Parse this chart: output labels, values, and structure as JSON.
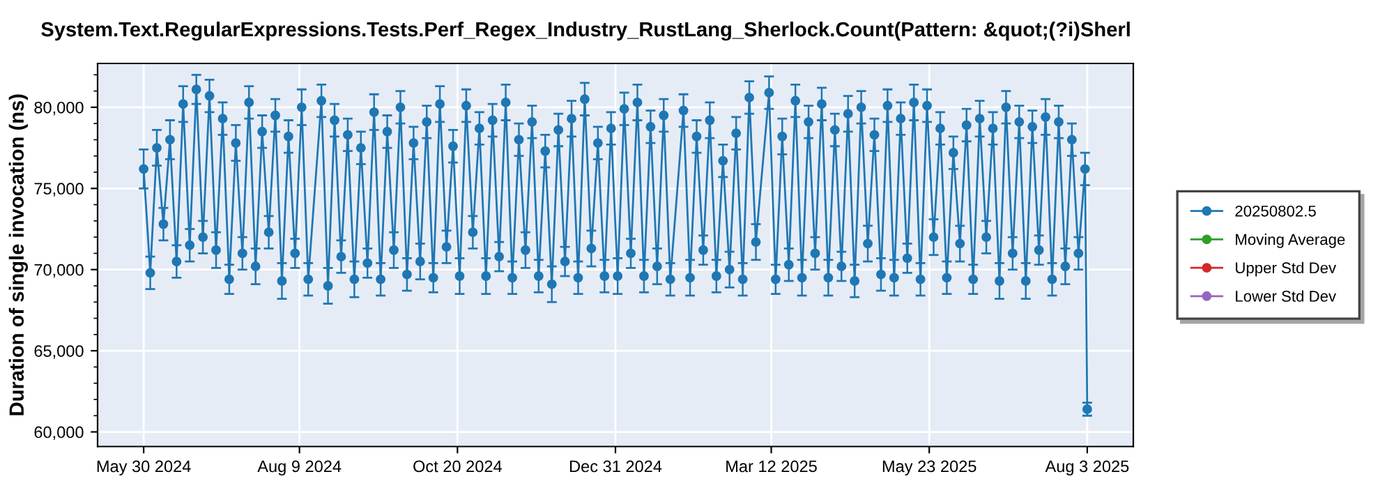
{
  "chart_data": {
    "type": "line",
    "title": "System.Text.RegularExpressions.Tests.Perf_Regex_Industry_RustLang_Sherlock.Count(Pattern: &quot;(?i)Sherl",
    "ylabel": "Duration of single invocation (ns)",
    "x": [
      "2024-05-30",
      "2024-06-02",
      "2024-06-05",
      "2024-06-08",
      "2024-06-11",
      "2024-06-14",
      "2024-06-17",
      "2024-06-20",
      "2024-06-23",
      "2024-06-26",
      "2024-06-29",
      "2024-07-02",
      "2024-07-05",
      "2024-07-08",
      "2024-07-11",
      "2024-07-14",
      "2024-07-17",
      "2024-07-20",
      "2024-07-23",
      "2024-07-26",
      "2024-07-29",
      "2024-08-01",
      "2024-08-04",
      "2024-08-07",
      "2024-08-10",
      "2024-08-13",
      "2024-08-19",
      "2024-08-22",
      "2024-08-25",
      "2024-08-28",
      "2024-08-31",
      "2024-09-03",
      "2024-09-06",
      "2024-09-09",
      "2024-09-12",
      "2024-09-15",
      "2024-09-18",
      "2024-09-21",
      "2024-09-24",
      "2024-09-27",
      "2024-09-30",
      "2024-10-03",
      "2024-10-06",
      "2024-10-09",
      "2024-10-12",
      "2024-10-15",
      "2024-10-18",
      "2024-10-21",
      "2024-10-24",
      "2024-10-27",
      "2024-10-30",
      "2024-11-02",
      "2024-11-05",
      "2024-11-08",
      "2024-11-11",
      "2024-11-14",
      "2024-11-17",
      "2024-11-20",
      "2024-11-23",
      "2024-11-26",
      "2024-11-29",
      "2024-12-02",
      "2024-12-05",
      "2024-12-08",
      "2024-12-11",
      "2024-12-14",
      "2024-12-17",
      "2024-12-20",
      "2024-12-23",
      "2024-12-26",
      "2024-12-29",
      "2025-01-01",
      "2025-01-04",
      "2025-01-07",
      "2025-01-10",
      "2025-01-13",
      "2025-01-16",
      "2025-01-19",
      "2025-01-22",
      "2025-01-25",
      "2025-01-31",
      "2025-02-03",
      "2025-02-06",
      "2025-02-09",
      "2025-02-12",
      "2025-02-15",
      "2025-02-18",
      "2025-02-21",
      "2025-02-24",
      "2025-02-27",
      "2025-03-02",
      "2025-03-05",
      "2025-03-11",
      "2025-03-14",
      "2025-03-17",
      "2025-03-20",
      "2025-03-23",
      "2025-03-26",
      "2025-03-29",
      "2025-04-01",
      "2025-04-04",
      "2025-04-07",
      "2025-04-10",
      "2025-04-13",
      "2025-04-16",
      "2025-04-19",
      "2025-04-22",
      "2025-04-25",
      "2025-04-28",
      "2025-05-01",
      "2025-05-04",
      "2025-05-07",
      "2025-05-10",
      "2025-05-13",
      "2025-05-16",
      "2025-05-19",
      "2025-05-22",
      "2025-05-25",
      "2025-05-28",
      "2025-05-31",
      "2025-06-03",
      "2025-06-06",
      "2025-06-09",
      "2025-06-12",
      "2025-06-15",
      "2025-06-18",
      "2025-06-21",
      "2025-06-24",
      "2025-06-27",
      "2025-06-30",
      "2025-07-03",
      "2025-07-06",
      "2025-07-09",
      "2025-07-12",
      "2025-07-15",
      "2025-07-18",
      "2025-07-21",
      "2025-07-24",
      "2025-07-27",
      "2025-07-30",
      "2025-08-02",
      "2025-08-03"
    ],
    "series": [
      {
        "name": "20250802.5",
        "color": "#1f77b4",
        "values": [
          76200,
          69800,
          77500,
          72800,
          78000,
          70500,
          80200,
          71500,
          81100,
          72000,
          80700,
          71200,
          79300,
          69400,
          77800,
          71000,
          80300,
          70200,
          78500,
          72300,
          79500,
          69300,
          78200,
          71000,
          80000,
          69400,
          80400,
          69000,
          79200,
          70800,
          78300,
          69400,
          77500,
          70400,
          79700,
          69400,
          78500,
          71200,
          80000,
          69700,
          77800,
          70500,
          79100,
          69500,
          80200,
          71400,
          77600,
          69600,
          80100,
          72300,
          78700,
          69600,
          79200,
          70800,
          80300,
          69500,
          78000,
          71200,
          79100,
          69600,
          77300,
          69100,
          78600,
          70500,
          79300,
          69500,
          80500,
          71300,
          77800,
          69600,
          78700,
          69600,
          79900,
          71000,
          80300,
          69600,
          78800,
          70200,
          79500,
          69400,
          79800,
          69500,
          78200,
          71200,
          79200,
          69600,
          76700,
          70000,
          78400,
          69400,
          80600,
          71700,
          80900,
          69400,
          78200,
          70300,
          80400,
          69500,
          79100,
          71000,
          80200,
          69500,
          78600,
          70200,
          79600,
          69300,
          80000,
          71600,
          78300,
          69700,
          80100,
          69500,
          79300,
          70700,
          80300,
          69400,
          80100,
          72000,
          78700,
          69500,
          77200,
          71600,
          78900,
          69400,
          79300,
          72000,
          78700,
          69300,
          80000,
          71000,
          79100,
          69300,
          78800,
          71200,
          79400,
          69400,
          79100,
          70200,
          78000,
          71000,
          76200,
          61400
        ],
        "errors": [
          1200,
          1000,
          1100,
          1000,
          1200,
          1000,
          1100,
          1000,
          900,
          1000,
          1000,
          1100,
          1000,
          900,
          1100,
          1000,
          1000,
          1100,
          1000,
          1000,
          1000,
          1100,
          1000,
          900,
          1100,
          1000,
          1000,
          1100,
          1000,
          1000,
          1000,
          1100,
          1000,
          900,
          1100,
          1000,
          1000,
          1100,
          1000,
          1000,
          1000,
          1100,
          1000,
          900,
          1100,
          1000,
          1000,
          1100,
          1000,
          1000,
          1000,
          1100,
          1000,
          900,
          1100,
          1000,
          1000,
          1100,
          1000,
          1000,
          1000,
          1100,
          1000,
          900,
          1100,
          1000,
          1000,
          1100,
          1000,
          1000,
          1000,
          1100,
          1000,
          900,
          1100,
          1000,
          1000,
          1100,
          1000,
          1000,
          1000,
          1100,
          1000,
          900,
          1100,
          1000,
          1000,
          1100,
          1000,
          1000,
          1000,
          1100,
          1000,
          900,
          1100,
          1000,
          1000,
          1100,
          1000,
          1000,
          1000,
          1100,
          1000,
          900,
          1100,
          1000,
          1000,
          1100,
          1000,
          1000,
          1000,
          1100,
          1000,
          900,
          1100,
          1000,
          1000,
          1100,
          1000,
          1000,
          1000,
          1100,
          1000,
          900,
          1100,
          1000,
          1000,
          1100,
          1000,
          1000,
          1000,
          1100,
          1000,
          900,
          1100,
          1000,
          1000,
          1100,
          1000,
          1000,
          1000,
          400
        ]
      },
      {
        "name": "Moving Average",
        "color": "#2ca02c",
        "values": [
          null,
          null,
          null,
          null,
          null,
          null,
          null,
          null,
          null,
          null,
          null,
          null,
          null,
          null,
          null,
          null,
          null,
          null,
          null,
          null,
          null,
          null,
          null,
          null,
          null,
          null,
          null,
          null,
          null,
          null,
          null,
          null,
          null,
          null,
          null,
          null,
          null,
          null,
          null,
          null,
          null,
          null,
          null,
          null,
          null,
          null,
          null,
          null,
          null,
          null,
          null,
          null,
          null,
          null,
          null,
          null,
          null,
          null,
          null,
          null,
          null,
          null,
          null,
          null,
          null,
          null,
          null,
          null,
          null,
          null,
          null,
          null,
          null,
          null,
          null,
          null,
          null,
          null,
          null,
          null,
          null,
          null,
          null,
          null,
          null,
          null,
          null,
          null,
          null,
          null,
          null,
          null,
          null,
          null,
          null,
          null,
          null,
          null,
          null,
          null,
          null,
          null,
          null,
          null,
          null,
          null,
          null,
          null,
          null,
          null,
          null,
          null,
          null,
          null,
          null,
          null,
          null,
          null,
          null,
          null,
          null,
          null,
          null,
          null,
          null,
          null,
          null,
          null,
          null,
          null,
          null,
          null,
          null,
          null,
          null,
          null,
          null,
          null,
          null,
          null,
          null,
          null
        ]
      },
      {
        "name": "Upper Std Dev",
        "color": "#d62728",
        "values": [
          null,
          null,
          null,
          null,
          null,
          null,
          null,
          null,
          null,
          null,
          null,
          null,
          null,
          null,
          null,
          null,
          null,
          null,
          null,
          null,
          null,
          null,
          null,
          null,
          null,
          null,
          null,
          null,
          null,
          null,
          null,
          null,
          null,
          null,
          null,
          null,
          null,
          null,
          null,
          null,
          null,
          null,
          null,
          null,
          null,
          null,
          null,
          null,
          null,
          null,
          null,
          null,
          null,
          null,
          null,
          null,
          null,
          null,
          null,
          null,
          null,
          null,
          null,
          null,
          null,
          null,
          null,
          null,
          null,
          null,
          null,
          null,
          null,
          null,
          null,
          null,
          null,
          null,
          null,
          null,
          null,
          null,
          null,
          null,
          null,
          null,
          null,
          null,
          null,
          null,
          null,
          null,
          null,
          null,
          null,
          null,
          null,
          null,
          null,
          null,
          null,
          null,
          null,
          null,
          null,
          null,
          null,
          null,
          null,
          null,
          null,
          null,
          null,
          null,
          null,
          null,
          null,
          null,
          null,
          null,
          null,
          null,
          null,
          null,
          null,
          null,
          null,
          null,
          null,
          null,
          null,
          null,
          null,
          null,
          null,
          null,
          null,
          null,
          null,
          null,
          null,
          null
        ]
      },
      {
        "name": "Lower Std Dev",
        "color": "#9467bd",
        "values": [
          null,
          null,
          null,
          null,
          null,
          null,
          null,
          null,
          null,
          null,
          null,
          null,
          null,
          null,
          null,
          null,
          null,
          null,
          null,
          null,
          null,
          null,
          null,
          null,
          null,
          null,
          null,
          null,
          null,
          null,
          null,
          null,
          null,
          null,
          null,
          null,
          null,
          null,
          null,
          null,
          null,
          null,
          null,
          null,
          null,
          null,
          null,
          null,
          null,
          null,
          null,
          null,
          null,
          null,
          null,
          null,
          null,
          null,
          null,
          null,
          null,
          null,
          null,
          null,
          null,
          null,
          null,
          null,
          null,
          null,
          null,
          null,
          null,
          null,
          null,
          null,
          null,
          null,
          null,
          null,
          null,
          null,
          null,
          null,
          null,
          null,
          null,
          null,
          null,
          null,
          null,
          null,
          null,
          null,
          null,
          null,
          null,
          null,
          null,
          null,
          null,
          null,
          null,
          null,
          null,
          null,
          null,
          null,
          null,
          null,
          null,
          null,
          null,
          null,
          null,
          null,
          null,
          null,
          null,
          null,
          null,
          null,
          null,
          null,
          null,
          null,
          null,
          null,
          null,
          null,
          null,
          null,
          null,
          null,
          null,
          null,
          null,
          null,
          null,
          null,
          null,
          null
        ]
      }
    ],
    "xlim": [
      "2024-05-09",
      "2025-08-24"
    ],
    "xticks": [
      {
        "value": "2024-05-30",
        "label": "May 30 2024"
      },
      {
        "value": "2024-08-09",
        "label": "Aug 9 2024"
      },
      {
        "value": "2024-10-20",
        "label": "Oct 20 2024"
      },
      {
        "value": "2024-12-31",
        "label": "Dec 31 2024"
      },
      {
        "value": "2025-03-12",
        "label": "Mar 12 2025"
      },
      {
        "value": "2025-05-23",
        "label": "May 23 2025"
      },
      {
        "value": "2025-08-03",
        "label": "Aug 3 2025"
      }
    ],
    "ylim": [
      59100,
      82700
    ],
    "yticks": [
      {
        "value": 60000,
        "label": "60,000"
      },
      {
        "value": 65000,
        "label": "65,000"
      },
      {
        "value": 70000,
        "label": "70,000"
      },
      {
        "value": 75000,
        "label": "75,000"
      },
      {
        "value": 80000,
        "label": "80,000"
      }
    ],
    "grid": true,
    "legend": "right",
    "marker": "circle",
    "line_style": "solid"
  }
}
